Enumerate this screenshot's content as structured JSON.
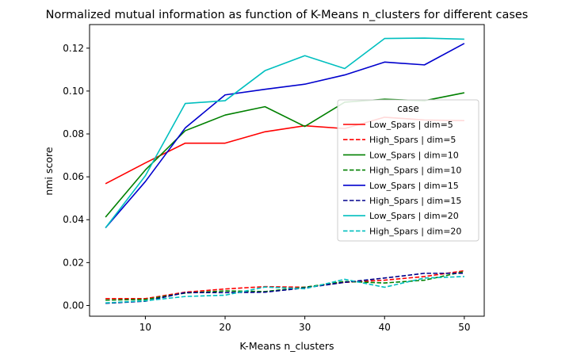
{
  "chart_data": {
    "type": "line",
    "title": "Normalized mutual information as function of K-Means n_clusters for different cases",
    "xlabel": "K-Means n_clusters",
    "ylabel": "nmi score",
    "xlim": [
      3,
      52.5
    ],
    "ylim": [
      -0.005,
      0.131
    ],
    "x_ticks": [
      10,
      20,
      30,
      40,
      50
    ],
    "x_tick_labels": [
      "10",
      "20",
      "30",
      "40",
      "50"
    ],
    "y_ticks": [
      0.0,
      0.02,
      0.04,
      0.06,
      0.08,
      0.1,
      0.12
    ],
    "y_tick_labels": [
      "0.00",
      "0.02",
      "0.04",
      "0.06",
      "0.08",
      "0.10",
      "0.12"
    ],
    "grid": false,
    "legend": {
      "title": "case",
      "position": "center-right"
    },
    "x": [
      5,
      10,
      15,
      20,
      25,
      30,
      35,
      40,
      45,
      50
    ],
    "series": [
      {
        "name": "Low_Spars | dim=5",
        "color": "#ff0000",
        "dash": "solid",
        "values": [
          0.0568,
          0.0665,
          0.0757,
          0.0757,
          0.081,
          0.0838,
          0.0825,
          0.0878,
          0.0865,
          0.0862
        ]
      },
      {
        "name": "High_Spars | dim=5",
        "color": "#ff0000",
        "dash": "dashed",
        "values": [
          0.0032,
          0.0032,
          0.0062,
          0.0077,
          0.0088,
          0.0085,
          0.0108,
          0.0118,
          0.0135,
          0.0162
        ]
      },
      {
        "name": "Low_Spars | dim=10",
        "color": "#008000",
        "dash": "solid",
        "values": [
          0.0412,
          0.0632,
          0.0815,
          0.0888,
          0.0927,
          0.0835,
          0.0948,
          0.0962,
          0.0955,
          0.0992
        ]
      },
      {
        "name": "High_Spars | dim=10",
        "color": "#008000",
        "dash": "dashed",
        "values": [
          0.0025,
          0.0028,
          0.0058,
          0.0068,
          0.0065,
          0.0085,
          0.0112,
          0.0105,
          0.0118,
          0.0158
        ]
      },
      {
        "name": "Low_Spars | dim=15",
        "color": "#0000cd",
        "dash": "solid",
        "values": [
          0.0362,
          0.0578,
          0.0828,
          0.0982,
          0.1008,
          0.1032,
          0.1075,
          0.1135,
          0.1122,
          0.1222
        ]
      },
      {
        "name": "High_Spars | dim=15",
        "color": "#00008b",
        "dash": "dashed",
        "values": [
          0.001,
          0.002,
          0.006,
          0.006,
          0.0062,
          0.0082,
          0.0108,
          0.0128,
          0.015,
          0.015
        ]
      },
      {
        "name": "Low_Spars | dim=20",
        "color": "#00bfbf",
        "dash": "solid",
        "values": [
          0.0362,
          0.0605,
          0.0942,
          0.0955,
          0.1095,
          0.1165,
          0.1105,
          0.1245,
          0.1247,
          0.1242
        ]
      },
      {
        "name": "High_Spars | dim=20",
        "color": "#00bfbf",
        "dash": "dashed",
        "values": [
          0.0012,
          0.0022,
          0.0042,
          0.0048,
          0.0086,
          0.0078,
          0.0122,
          0.0085,
          0.0128,
          0.0135
        ]
      }
    ]
  }
}
